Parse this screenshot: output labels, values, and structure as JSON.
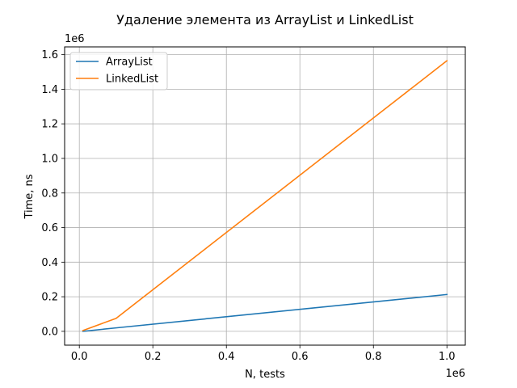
{
  "chart_data": {
    "type": "line",
    "title": "Удаление элемента из ArrayList и LinkedList",
    "xlabel": "N, tests",
    "ylabel": "Time, ns",
    "x_offset_text": "1e6",
    "y_offset_text": "1e6",
    "xlim": [
      -0.04,
      1.05
    ],
    "ylim": [
      -0.08,
      1.645
    ],
    "xticks": [
      0.0,
      0.2,
      0.4,
      0.6,
      0.8,
      1.0
    ],
    "xtick_labels": [
      "0.0",
      "0.2",
      "0.4",
      "0.6",
      "0.8",
      "1.0"
    ],
    "yticks": [
      0.0,
      0.2,
      0.4,
      0.6,
      0.8,
      1.0,
      1.2,
      1.4,
      1.6
    ],
    "ytick_labels": [
      "0.0",
      "0.2",
      "0.4",
      "0.6",
      "0.8",
      "1.0",
      "1.2",
      "1.4",
      "1.6"
    ],
    "grid": true,
    "legend_position": "top-left",
    "series": [
      {
        "name": "ArrayList",
        "color": "#1f77b4",
        "x": [
          0.01,
          0.1,
          1.0
        ],
        "y": [
          0.0,
          0.02,
          0.213
        ]
      },
      {
        "name": "LinkedList",
        "color": "#ff7f0e",
        "x": [
          0.01,
          0.1,
          1.0
        ],
        "y": [
          0.005,
          0.075,
          1.565
        ]
      }
    ]
  }
}
